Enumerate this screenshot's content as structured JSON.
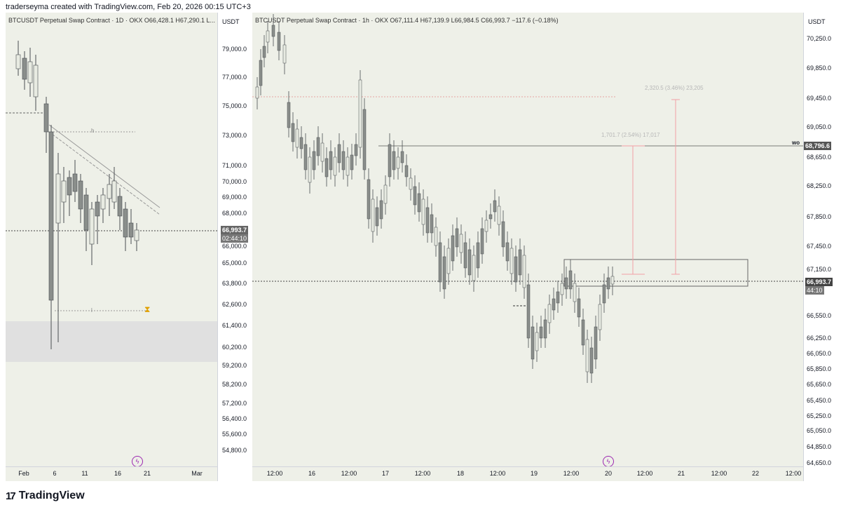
{
  "header": {
    "credit": "traderseyma created with TradingView.com, Feb 20, 2026 00:15 UTC+3"
  },
  "left_chart": {
    "legend": "BTCUSDT Perpetual Swap Contract · 1D · OKX  O66,428.1  H67,290.1  L...",
    "currency": "USDT",
    "price_ticks": [
      "79,000.0",
      "77,000.0",
      "75,000.0",
      "73,000.0",
      "71,000.0",
      "70,000.0",
      "69,000.0",
      "68,000.0",
      "66,000.0",
      "65,000.0",
      "63,800.0",
      "62,600.0",
      "61,400.0",
      "60,200.0",
      "59,200.0",
      "58,200.0",
      "57,200.0",
      "56,400.0",
      "55,600.0",
      "54,800.0"
    ],
    "current_price": "66,993.7",
    "countdown": "02:44:10",
    "x_ticks": [
      "Feb",
      "6",
      "11",
      "16",
      "21",
      "Mar"
    ],
    "drawing_labels": {
      "h": "h",
      "l": "l"
    }
  },
  "right_chart": {
    "legend": "BTCUSDT Perpetual Swap Contract · 1h · OKX  O67,111.4  H67,139.9  L66,984.5  C66,993.7  −117.6 (−0.18%)",
    "currency": "USDT",
    "price_ticks": [
      "70,250.0",
      "69,850.0",
      "69,450.0",
      "69,050.0",
      "68,650.0",
      "68,250.0",
      "67,850.0",
      "67,450.0",
      "67,150.0",
      "66,550.0",
      "66,250.0",
      "66,050.0",
      "65,850.0",
      "65,650.0",
      "65,450.0",
      "65,250.0",
      "65,050.0",
      "64,850.0",
      "64,650.0"
    ],
    "current_price": "66,993.7",
    "countdown": "44:10",
    "wo_level": "68,796.6",
    "wo_label": "wo",
    "x_ticks": [
      "12:00",
      "16",
      "12:00",
      "17",
      "12:00",
      "18",
      "12:00",
      "19",
      "12:00",
      "20",
      "12:00",
      "21",
      "12:00",
      "22",
      "12:00"
    ],
    "measure1": "1,701.7 (2.54%) 17,017",
    "measure2": "2,320.5 (3.46%) 23,205"
  },
  "footer": {
    "brand": "TradingView",
    "brand_mark": "17"
  },
  "colors": {
    "pane_bg": "#eef0e8",
    "candle_up": "#e8ebe2",
    "candle_down": "#8a8e8b",
    "wick": "#4a4e52",
    "measure": "#f2a0a6"
  }
}
